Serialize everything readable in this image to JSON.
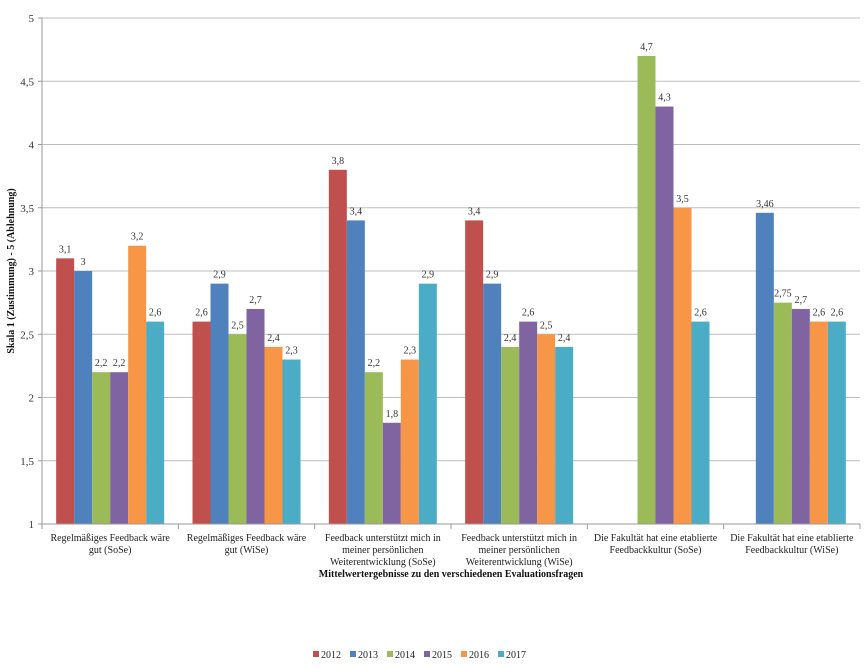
{
  "chart_data": {
    "type": "bar",
    "title": "",
    "xlabel": "Mittelwertergebnisse  zu den verschiedenen Evaluationsfragen",
    "ylabel": "Skala 1 (Zustimmung) - 5 (Ablehnung)",
    "ylim": [
      1,
      5
    ],
    "yticks": [
      1,
      1.5,
      2,
      2.5,
      3,
      3.5,
      4,
      4.5,
      5
    ],
    "ytick_labels": [
      "1",
      "1,5",
      "2",
      "2,5",
      "3",
      "3,5",
      "4",
      "4,5",
      "5"
    ],
    "grid": true,
    "legend_position": "bottom",
    "categories": [
      [
        "Regelmäßiges Feedback wäre",
        "gut (SoSe)"
      ],
      [
        "Regelmäßiges Feedback wäre",
        "gut (WiSe)"
      ],
      [
        "Feedback unterstützt mich in",
        "meiner persönlichen",
        "Weiterentwicklung (SoSe)"
      ],
      [
        "Feedback unterstützt mich in",
        "meiner persönlichen",
        "Weiterentwicklung (WiSe)"
      ],
      [
        "Die Fakultät hat eine etablierte",
        "Feedbackkultur (SoSe)"
      ],
      [
        "Die Fakultät hat eine etablierte",
        "Feedbackkultur (WiSe)"
      ]
    ],
    "series": [
      {
        "name": "2012",
        "color": "#C0504D",
        "values": [
          3.1,
          2.6,
          3.8,
          3.4,
          null,
          null
        ],
        "labels": [
          "3,1",
          "2,6",
          "3,8",
          "3,4",
          null,
          null
        ]
      },
      {
        "name": "2013",
        "color": "#4F81BD",
        "values": [
          3.0,
          2.9,
          3.4,
          2.9,
          null,
          3.46
        ],
        "labels": [
          "3",
          "2,9",
          "3,4",
          "2,9",
          null,
          "3,46"
        ]
      },
      {
        "name": "2014",
        "color": "#9BBB59",
        "values": [
          2.2,
          2.5,
          2.2,
          2.4,
          4.7,
          2.75
        ],
        "labels": [
          "2,2",
          "2,5",
          "2,2",
          "2,4",
          "4,7",
          "2,75"
        ]
      },
      {
        "name": "2015",
        "color": "#8064A2",
        "values": [
          2.2,
          2.7,
          1.8,
          2.6,
          4.3,
          2.7
        ],
        "labels": [
          "2,2",
          "2,7",
          "1,8",
          "2,6",
          "4,3",
          "2,7"
        ]
      },
      {
        "name": "2016",
        "color": "#F79646",
        "values": [
          3.2,
          2.4,
          2.3,
          2.5,
          3.5,
          2.6
        ],
        "labels": [
          "3,2",
          "2,4",
          "2,3",
          "2,5",
          "3,5",
          "2,6"
        ]
      },
      {
        "name": "2017",
        "color": "#4BACC6",
        "values": [
          2.6,
          2.3,
          2.9,
          2.4,
          2.6,
          2.6
        ],
        "labels": [
          "2,6",
          "2,3",
          "2,9",
          "2,4",
          "2,6",
          "2,6"
        ]
      }
    ]
  }
}
